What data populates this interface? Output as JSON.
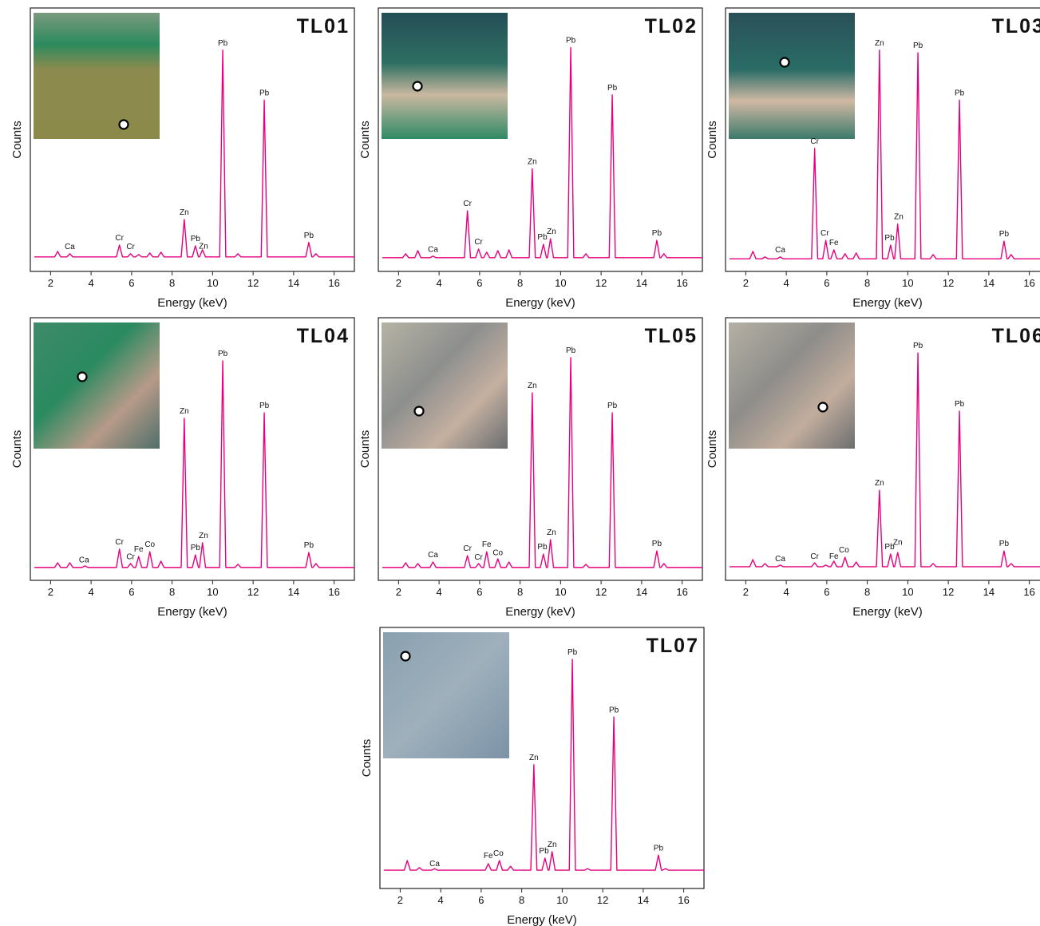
{
  "chart_data": [
    {
      "type": "line",
      "title": "TL01",
      "xlabel": "Energy (keV)",
      "ylabel": "Counts",
      "xlim": [
        1,
        17
      ],
      "ylim": [
        0,
        100
      ],
      "xticks": [
        2,
        4,
        6,
        8,
        10,
        12,
        14,
        16
      ],
      "color": "#e6007e",
      "x": [
        1.2,
        2.2,
        2.35,
        2.5,
        2.8,
        2.95,
        3.1,
        3.55,
        3.7,
        3.85,
        5.25,
        5.4,
        5.55,
        5.8,
        5.95,
        6.1,
        6.2,
        6.35,
        6.5,
        6.75,
        6.9,
        7.05,
        7.3,
        7.45,
        7.6,
        8.45,
        8.6,
        8.75,
        9,
        9.15,
        9.3,
        9.35,
        9.5,
        9.65,
        10.35,
        10.5,
        10.65,
        11.1,
        11.25,
        11.4,
        12.4,
        12.55,
        12.7,
        14.6,
        14.75,
        14.9,
        14.95,
        15.1,
        15.25,
        17
      ],
      "values": [
        5.5,
        5.5,
        7.6,
        5.5,
        5.5,
        6.7,
        5.5,
        5.5,
        5.5,
        5.5,
        5.5,
        10,
        5.5,
        5.5,
        6.7,
        5.5,
        5.5,
        6.4,
        5.5,
        5.5,
        7,
        5.5,
        5.5,
        7.3,
        5.5,
        5.5,
        19.7,
        5.5,
        5.5,
        9.7,
        5.5,
        5.5,
        8.2,
        5.5,
        5.5,
        84,
        5.5,
        5.5,
        6.7,
        5.5,
        5.5,
        65,
        5.5,
        5.5,
        11,
        5.5,
        5.5,
        6.7,
        5.5,
        5.5
      ],
      "annotations": [
        {
          "text": "Ca",
          "x": 2.95,
          "y": 8.5
        },
        {
          "text": "Cr",
          "x": 5.4,
          "y": 11.8
        },
        {
          "text": "Cr",
          "x": 5.95,
          "y": 8.5
        },
        {
          "text": "Zn",
          "x": 8.6,
          "y": 21.5
        },
        {
          "text": "Pb",
          "x": 9.15,
          "y": 11.5
        },
        {
          "text": "Zn",
          "x": 9.55,
          "y": 8.7
        },
        {
          "text": "Pb",
          "x": 10.5,
          "y": 85.8
        },
        {
          "text": "Pb",
          "x": 12.55,
          "y": 66.8
        },
        {
          "text": "Pb",
          "x": 14.75,
          "y": 12.8
        }
      ]
    },
    {
      "type": "line",
      "title": "TL02",
      "xlabel": "Energy (keV)",
      "ylabel": "Counts",
      "xlim": [
        1,
        17
      ],
      "ylim": [
        0,
        100
      ],
      "xticks": [
        2,
        4,
        6,
        8,
        10,
        12,
        14,
        16
      ],
      "color": "#e6007e",
      "x": [
        1.2,
        2.2,
        2.35,
        2.5,
        2.8,
        2.95,
        3.1,
        3.55,
        3.7,
        3.85,
        5.25,
        5.4,
        5.55,
        5.8,
        5.95,
        6.1,
        6.2,
        6.35,
        6.5,
        6.75,
        6.9,
        7.05,
        7.3,
        7.45,
        7.6,
        8.45,
        8.6,
        8.75,
        9,
        9.15,
        9.3,
        9.35,
        9.5,
        9.65,
        10.35,
        10.5,
        10.65,
        11.1,
        11.25,
        11.4,
        12.4,
        12.55,
        12.7,
        14.6,
        14.75,
        14.9,
        14.95,
        15.1,
        15.25,
        17
      ],
      "values": [
        5.2,
        5.2,
        6.7,
        5.2,
        5.2,
        7.9,
        5.2,
        5.2,
        5.8,
        5.2,
        5.2,
        23,
        5.2,
        5.2,
        8.5,
        5.2,
        5.2,
        7.3,
        5.2,
        5.2,
        7.9,
        5.2,
        5.2,
        8.2,
        5.2,
        5.2,
        39,
        5.2,
        5.2,
        10.3,
        5.2,
        5.2,
        12.4,
        5.2,
        5.2,
        85,
        5.2,
        5.2,
        6.7,
        5.2,
        5.2,
        67,
        5.2,
        5.2,
        11.8,
        5.2,
        5.2,
        6.7,
        5.2,
        5.2
      ],
      "annotations": [
        {
          "text": "Ca",
          "x": 3.7,
          "y": 7.5
        },
        {
          "text": "Cr",
          "x": 5.4,
          "y": 24.8
        },
        {
          "text": "Cr",
          "x": 5.95,
          "y": 10.3
        },
        {
          "text": "Zn",
          "x": 8.6,
          "y": 40.8
        },
        {
          "text": "Pb",
          "x": 9.1,
          "y": 12.1
        },
        {
          "text": "Zn",
          "x": 9.55,
          "y": 14.2
        },
        {
          "text": "Pb",
          "x": 10.5,
          "y": 86.8
        },
        {
          "text": "Pb",
          "x": 12.55,
          "y": 68.8
        },
        {
          "text": "Pb",
          "x": 14.75,
          "y": 13.6
        }
      ]
    },
    {
      "type": "line",
      "title": "TL03",
      "xlabel": "Energy (keV)",
      "ylabel": "Counts",
      "xlim": [
        1,
        17
      ],
      "ylim": [
        0,
        100
      ],
      "xticks": [
        2,
        4,
        6,
        8,
        10,
        12,
        14,
        16
      ],
      "color": "#e6007e",
      "x": [
        1.2,
        2.2,
        2.35,
        2.5,
        2.8,
        2.95,
        3.1,
        3.55,
        3.7,
        3.85,
        5.25,
        5.4,
        5.55,
        5.8,
        5.95,
        6.1,
        6.2,
        6.35,
        6.5,
        6.75,
        6.9,
        7.05,
        7.3,
        7.45,
        7.6,
        8.45,
        8.6,
        8.75,
        9,
        9.15,
        9.3,
        9.35,
        9.5,
        9.65,
        10.35,
        10.5,
        10.65,
        11.1,
        11.25,
        11.4,
        12.4,
        12.55,
        12.7,
        14.6,
        14.75,
        14.9,
        14.95,
        15.1,
        15.25,
        17
      ],
      "values": [
        4.8,
        4.8,
        7.6,
        4.8,
        4.8,
        5.5,
        4.8,
        4.8,
        5.5,
        4.8,
        4.8,
        46.7,
        4.8,
        4.8,
        11.8,
        4.8,
        4.8,
        8.2,
        4.8,
        4.8,
        6.7,
        4.8,
        4.8,
        7,
        4.8,
        4.8,
        84,
        4.8,
        4.8,
        10,
        4.8,
        4.8,
        18,
        4.8,
        4.8,
        83,
        4.8,
        4.8,
        6.4,
        4.8,
        4.8,
        65,
        4.8,
        4.8,
        11.5,
        4.8,
        4.8,
        6.4,
        4.8,
        4.8
      ],
      "annotations": [
        {
          "text": "Ca",
          "x": 3.7,
          "y": 7.3
        },
        {
          "text": "Cr",
          "x": 5.4,
          "y": 48.5
        },
        {
          "text": "Cr",
          "x": 5.9,
          "y": 13.6
        },
        {
          "text": "Fe",
          "x": 6.35,
          "y": 10
        },
        {
          "text": "Zn",
          "x": 8.6,
          "y": 85.8
        },
        {
          "text": "Pb",
          "x": 9.1,
          "y": 11.8
        },
        {
          "text": "Zn",
          "x": 9.55,
          "y": 19.8
        },
        {
          "text": "Pb",
          "x": 10.5,
          "y": 84.8
        },
        {
          "text": "Pb",
          "x": 12.55,
          "y": 66.8
        },
        {
          "text": "Pb",
          "x": 14.75,
          "y": 13.3
        }
      ]
    },
    {
      "type": "line",
      "title": "TL04",
      "xlabel": "Energy (keV)",
      "ylabel": "Counts",
      "xlim": [
        1,
        17
      ],
      "ylim": [
        0,
        100
      ],
      "xticks": [
        2,
        4,
        6,
        8,
        10,
        12,
        14,
        16
      ],
      "color": "#e6007e",
      "x": [
        1.2,
        2.2,
        2.35,
        2.5,
        2.8,
        2.95,
        3.1,
        3.55,
        3.7,
        3.85,
        5.25,
        5.4,
        5.55,
        5.8,
        5.95,
        6.1,
        6.2,
        6.35,
        6.5,
        6.75,
        6.9,
        7.05,
        7.3,
        7.45,
        7.6,
        8.45,
        8.6,
        8.75,
        9,
        9.15,
        9.3,
        9.35,
        9.5,
        9.65,
        10.35,
        10.5,
        10.65,
        11.1,
        11.25,
        11.4,
        12.4,
        12.55,
        12.7,
        14.6,
        14.75,
        14.9,
        14.95,
        15.1,
        15.25,
        17
      ],
      "values": [
        4.9,
        4.9,
        6.7,
        4.9,
        4.9,
        6.7,
        4.9,
        4.9,
        5.5,
        4.9,
        4.9,
        11.9,
        4.9,
        4.9,
        6.4,
        4.9,
        4.9,
        9.1,
        4.9,
        4.9,
        10.9,
        4.9,
        4.9,
        7.3,
        4.9,
        4.9,
        61.7,
        4.9,
        4.9,
        9.7,
        4.9,
        4.9,
        14.3,
        4.9,
        4.9,
        83.6,
        4.9,
        4.9,
        6.1,
        4.9,
        4.9,
        63.8,
        4.9,
        4.9,
        10.6,
        4.9,
        4.9,
        6.4,
        4.9,
        4.9
      ],
      "annotations": [
        {
          "text": "Ca",
          "x": 3.65,
          "y": 6.8
        },
        {
          "text": "Cr",
          "x": 5.4,
          "y": 13.7
        },
        {
          "text": "Cr",
          "x": 5.95,
          "y": 8
        },
        {
          "text": "Fe",
          "x": 6.35,
          "y": 10.9
        },
        {
          "text": "Co",
          "x": 6.9,
          "y": 12.7
        },
        {
          "text": "Zn",
          "x": 8.6,
          "y": 63.5
        },
        {
          "text": "Pb",
          "x": 9.15,
          "y": 11.5
        },
        {
          "text": "Zn",
          "x": 9.55,
          "y": 16.1
        },
        {
          "text": "Pb",
          "x": 10.5,
          "y": 85.4
        },
        {
          "text": "Pb",
          "x": 12.55,
          "y": 65.6
        },
        {
          "text": "Pb",
          "x": 14.75,
          "y": 12.4
        }
      ]
    },
    {
      "type": "line",
      "title": "TL05",
      "xlabel": "Energy (keV)",
      "ylabel": "Counts",
      "xlim": [
        1,
        17
      ],
      "ylim": [
        0,
        100
      ],
      "xticks": [
        2,
        4,
        6,
        8,
        10,
        12,
        14,
        16
      ],
      "color": "#e6007e",
      "x": [
        1.2,
        2.2,
        2.35,
        2.5,
        2.8,
        2.95,
        3.1,
        3.55,
        3.7,
        3.85,
        5.25,
        5.4,
        5.55,
        5.8,
        5.95,
        6.1,
        6.2,
        6.35,
        6.5,
        6.75,
        6.9,
        7.05,
        7.3,
        7.45,
        7.6,
        8.45,
        8.6,
        8.75,
        9,
        9.15,
        9.3,
        9.35,
        9.5,
        9.65,
        10.35,
        10.5,
        10.65,
        11.1,
        11.25,
        11.4,
        12.4,
        12.55,
        12.7,
        14.6,
        14.75,
        14.9,
        14.95,
        15.1,
        15.25,
        17
      ],
      "values": [
        4.9,
        4.9,
        6.7,
        4.9,
        4.9,
        6.4,
        4.9,
        4.9,
        7,
        4.9,
        4.9,
        9.4,
        4.9,
        4.9,
        6.4,
        4.9,
        4.9,
        10.9,
        4.9,
        4.9,
        8.2,
        4.9,
        4.9,
        7,
        4.9,
        4.9,
        71.4,
        4.9,
        4.9,
        10,
        4.9,
        4.9,
        15.5,
        4.9,
        4.9,
        84.8,
        4.9,
        4.9,
        6.1,
        4.9,
        4.9,
        63.8,
        4.9,
        4.9,
        11.2,
        4.9,
        4.9,
        6.4,
        4.9,
        4.9
      ],
      "annotations": [
        {
          "text": "Ca",
          "x": 3.7,
          "y": 8.8
        },
        {
          "text": "Cr",
          "x": 5.4,
          "y": 11.2
        },
        {
          "text": "Cr",
          "x": 5.95,
          "y": 7.9
        },
        {
          "text": "Fe",
          "x": 6.35,
          "y": 12.7
        },
        {
          "text": "Co",
          "x": 6.9,
          "y": 9.5
        },
        {
          "text": "Zn",
          "x": 8.6,
          "y": 73.2
        },
        {
          "text": "Pb",
          "x": 9.1,
          "y": 11.8
        },
        {
          "text": "Zn",
          "x": 9.55,
          "y": 17.3
        },
        {
          "text": "Pb",
          "x": 10.5,
          "y": 86.6
        },
        {
          "text": "Pb",
          "x": 12.55,
          "y": 65.6
        },
        {
          "text": "Pb",
          "x": 14.75,
          "y": 13
        }
      ]
    },
    {
      "type": "line",
      "title": "TL06",
      "xlabel": "Energy (keV)",
      "ylabel": "Counts",
      "xlim": [
        1,
        17
      ],
      "ylim": [
        0,
        100
      ],
      "xticks": [
        2,
        4,
        6,
        8,
        10,
        12,
        14,
        16
      ],
      "color": "#e6007e",
      "x": [
        1.2,
        2.2,
        2.35,
        2.5,
        2.8,
        2.95,
        3.1,
        3.55,
        3.7,
        3.85,
        5.25,
        5.4,
        5.55,
        5.8,
        5.95,
        6.1,
        6.2,
        6.35,
        6.5,
        6.75,
        6.9,
        7.05,
        7.3,
        7.45,
        7.6,
        8.45,
        8.6,
        8.75,
        9,
        9.15,
        9.3,
        9.35,
        9.5,
        9.65,
        10.35,
        10.5,
        10.65,
        11.1,
        11.25,
        11.4,
        12.4,
        12.55,
        12.7,
        14.6,
        14.75,
        14.9,
        14.95,
        15.1,
        15.25,
        17
      ],
      "values": [
        5.2,
        5.2,
        7.9,
        5.2,
        5.2,
        6.4,
        5.2,
        5.2,
        5.8,
        5.2,
        5.2,
        6.7,
        5.2,
        5.2,
        5.8,
        5.2,
        5.2,
        7.3,
        5.2,
        5.2,
        8.8,
        5.2,
        5.2,
        7,
        5.2,
        5.2,
        34.3,
        5.2,
        5.2,
        10,
        5.2,
        5.2,
        10.6,
        5.2,
        5.2,
        86.6,
        5.2,
        5.2,
        6.4,
        5.2,
        5.2,
        64.4,
        5.2,
        5.2,
        11.2,
        5.2,
        5.2,
        6.4,
        5.2,
        5.2
      ],
      "annotations": [
        {
          "text": "Ca",
          "x": 3.7,
          "y": 7.3
        },
        {
          "text": "Cr",
          "x": 5.4,
          "y": 8.2
        },
        {
          "text": "Fe",
          "x": 6.35,
          "y": 8.2
        },
        {
          "text": "Co",
          "x": 6.85,
          "y": 10.6
        },
        {
          "text": "Zn",
          "x": 8.6,
          "y": 36.1
        },
        {
          "text": "Pb",
          "x": 9.1,
          "y": 11.8
        },
        {
          "text": "Zn",
          "x": 9.5,
          "y": 13.6
        },
        {
          "text": "Pb",
          "x": 10.5,
          "y": 88.4
        },
        {
          "text": "Pb",
          "x": 12.55,
          "y": 66.2
        },
        {
          "text": "Pb",
          "x": 14.75,
          "y": 13
        }
      ]
    },
    {
      "type": "line",
      "title": "TL07",
      "xlabel": "Energy (keV)",
      "ylabel": "Counts",
      "xlim": [
        1,
        17
      ],
      "ylim": [
        0,
        100
      ],
      "xticks": [
        2,
        4,
        6,
        8,
        10,
        12,
        14,
        16
      ],
      "color": "#e6007e",
      "x": [
        1.2,
        2.2,
        2.35,
        2.5,
        2.8,
        2.95,
        3.1,
        3.55,
        3.7,
        3.85,
        5.25,
        5.4,
        5.55,
        5.8,
        5.95,
        6.1,
        6.2,
        6.35,
        6.5,
        6.75,
        6.9,
        7.05,
        7.3,
        7.45,
        7.6,
        8.45,
        8.6,
        8.75,
        9,
        9.15,
        9.3,
        9.35,
        9.5,
        9.65,
        10.35,
        10.5,
        10.65,
        11.1,
        11.25,
        11.4,
        12.4,
        12.55,
        12.7,
        14.6,
        14.75,
        14.9,
        14.95,
        15.1,
        15.25,
        17
      ],
      "values": [
        7,
        7,
        10.7,
        7,
        7,
        8,
        7,
        7,
        7.6,
        7,
        7,
        7,
        7,
        7,
        7,
        7,
        7,
        9.5,
        7,
        7,
        10.7,
        7,
        7,
        8.5,
        7,
        7,
        47.4,
        7,
        7,
        11.6,
        7,
        7,
        14.1,
        7,
        7,
        87.8,
        7,
        7,
        7.6,
        7,
        7,
        65.7,
        7,
        7,
        12.8,
        7,
        7,
        7.6,
        7,
        7
      ],
      "annotations": [
        {
          "text": "Ca",
          "x": 3.7,
          "y": 8.6
        },
        {
          "text": "Fe",
          "x": 6.35,
          "y": 11.6
        },
        {
          "text": "Co",
          "x": 6.85,
          "y": 12.5
        },
        {
          "text": "Zn",
          "x": 8.6,
          "y": 49.2
        },
        {
          "text": "Pb",
          "x": 9.1,
          "y": 13.4
        },
        {
          "text": "Zn",
          "x": 9.5,
          "y": 15.9
        },
        {
          "text": "Pb",
          "x": 10.5,
          "y": 89.6
        },
        {
          "text": "Pb",
          "x": 12.55,
          "y": 67.5
        },
        {
          "text": "Pb",
          "x": 14.75,
          "y": 14.6
        }
      ]
    }
  ]
}
